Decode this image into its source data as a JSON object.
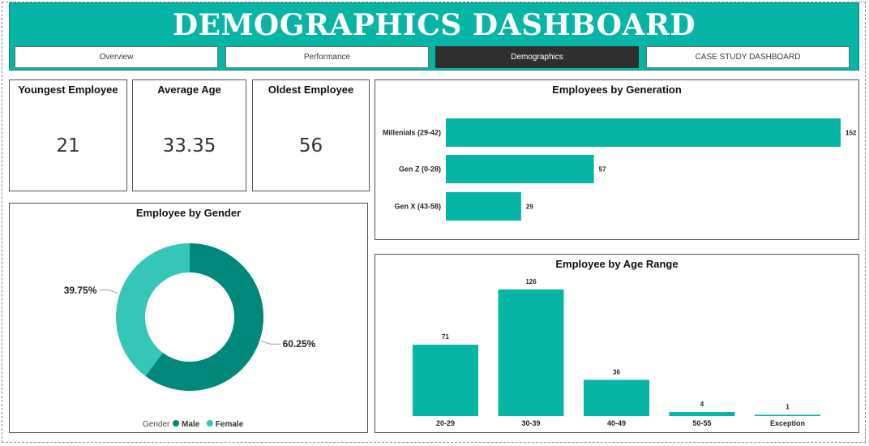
{
  "header": {
    "title": "DEMOGRAPHICS DASHBOARD"
  },
  "nav": [
    {
      "label": "Overview",
      "active": false
    },
    {
      "label": "Performance",
      "active": false
    },
    {
      "label": "Demographics",
      "active": true
    },
    {
      "label": "CASE STUDY DASHBOARD",
      "active": false
    }
  ],
  "kpis": {
    "youngest": {
      "label": "Youngest Employee",
      "value": "21"
    },
    "average": {
      "label": "Average Age",
      "value": "33.35"
    },
    "oldest": {
      "label": "Oldest Employee",
      "value": "56"
    }
  },
  "colors": {
    "accent": "#06b5a6",
    "male": "#00897b",
    "female": "#35c6b8",
    "nav_active": "#2f2f2f"
  },
  "chart_data": [
    {
      "id": "gender",
      "type": "pie",
      "title": "Employee by Gender",
      "donut": true,
      "legend_title": "Gender",
      "legend_position": "bottom",
      "slices": [
        {
          "name": "Male",
          "value": 60.25,
          "label": "60.25%",
          "color": "#00897b"
        },
        {
          "name": "Female",
          "value": 39.75,
          "label": "39.75%",
          "color": "#35c6b8"
        }
      ]
    },
    {
      "id": "generation",
      "type": "bar",
      "orientation": "horizontal",
      "title": "Employees by Generation",
      "categories": [
        "Millenials (29-42)",
        "Gen Z (0-28)",
        "Gen X (43-58)"
      ],
      "values": [
        152,
        57,
        29
      ],
      "xlim": [
        0,
        152
      ]
    },
    {
      "id": "age_range",
      "type": "bar",
      "orientation": "vertical",
      "title": "Employee by Age Range",
      "categories": [
        "20-29",
        "30-39",
        "40-49",
        "50-55",
        "Exception"
      ],
      "values": [
        71,
        126,
        36,
        4,
        1
      ],
      "ylim": [
        0,
        126
      ]
    }
  ]
}
